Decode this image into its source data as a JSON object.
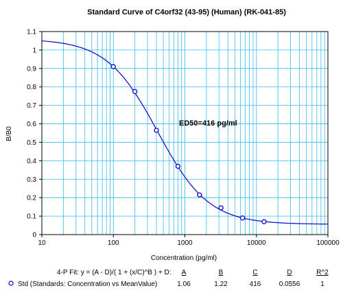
{
  "chart_data": {
    "type": "scatter",
    "title": "Standard Curve of C4orf32 (43-95) (Human) (RK-041-85)",
    "xlabel": "Concentration (pg/ml)",
    "ylabel": "B/B0",
    "x_scale": "log",
    "xlim": [
      10,
      100000
    ],
    "ylim": [
      0,
      1.1
    ],
    "x_ticks": [
      "10",
      "100",
      "1000",
      "10000",
      "100000"
    ],
    "y_ticks": [
      "0",
      "0.1",
      "0.2",
      "0.3",
      "0.4",
      "0.5",
      "0.6",
      "0.7",
      "0.8",
      "0.9",
      "1",
      "1.1"
    ],
    "grid": true,
    "series": [
      {
        "name": "Std (Standards: Concentration vs MeanValue)",
        "marker": "open-circle",
        "color": "#0000cc",
        "x": [
          100,
          200,
          400,
          800,
          1600,
          3200,
          6400,
          12800
        ],
        "y": [
          0.91,
          0.775,
          0.565,
          0.37,
          0.215,
          0.145,
          0.09,
          0.07
        ]
      }
    ],
    "fit": {
      "type": "4-P",
      "color": "#0000cc",
      "A": 1.06,
      "B": 1.22,
      "C": 416,
      "D": 0.0556
    },
    "annotation": "ED50=416 pg/ml",
    "fit_table": {
      "equation": "4-P Fit: y = (A - D)/( 1 + (x/C)^B ) + D:",
      "headers": [
        "A",
        "B",
        "C",
        "D",
        "R^2"
      ],
      "row_label": "Std (Standards: Concentration vs MeanValue)",
      "row_values": [
        "1.06",
        "1.22",
        "416",
        "0.0556",
        "1"
      ]
    },
    "colors": {
      "grid": "#33bbee",
      "curve": "#0000cc",
      "points": "#0000cc"
    }
  }
}
